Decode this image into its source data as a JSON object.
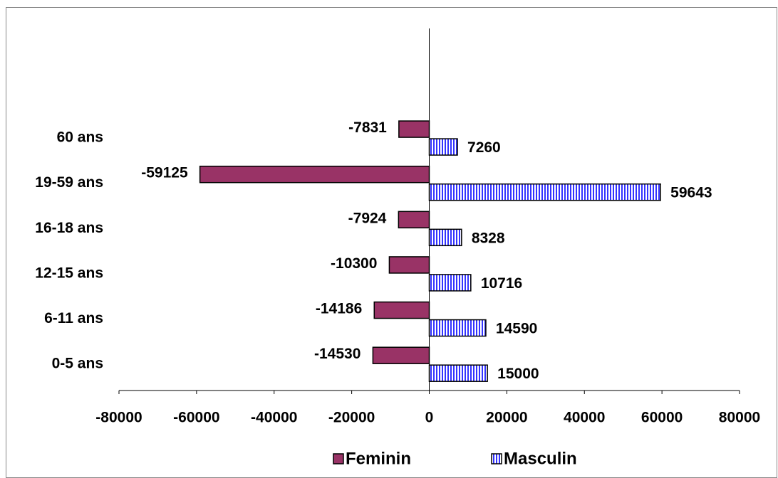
{
  "chart_data": {
    "type": "hbar",
    "categories": [
      "0-5 ans",
      "6-11 ans",
      "12-15 ans",
      "16-18 ans",
      "19-59 ans",
      "60 ans",
      null,
      null
    ],
    "series": [
      {
        "name": "Feminin",
        "color": "#993366",
        "values": [
          -14530,
          -14186,
          -10300,
          -7924,
          -59125,
          -7831,
          null,
          null
        ]
      },
      {
        "name": "Masculin",
        "color": "#3333ff",
        "values": [
          15000,
          14590,
          10716,
          8328,
          59643,
          7260,
          null,
          null
        ]
      }
    ],
    "xlim": [
      -80000,
      80000
    ],
    "xticks": [
      -80000,
      -60000,
      -40000,
      -20000,
      0,
      20000,
      40000,
      60000,
      80000
    ],
    "legend": "bottom"
  }
}
